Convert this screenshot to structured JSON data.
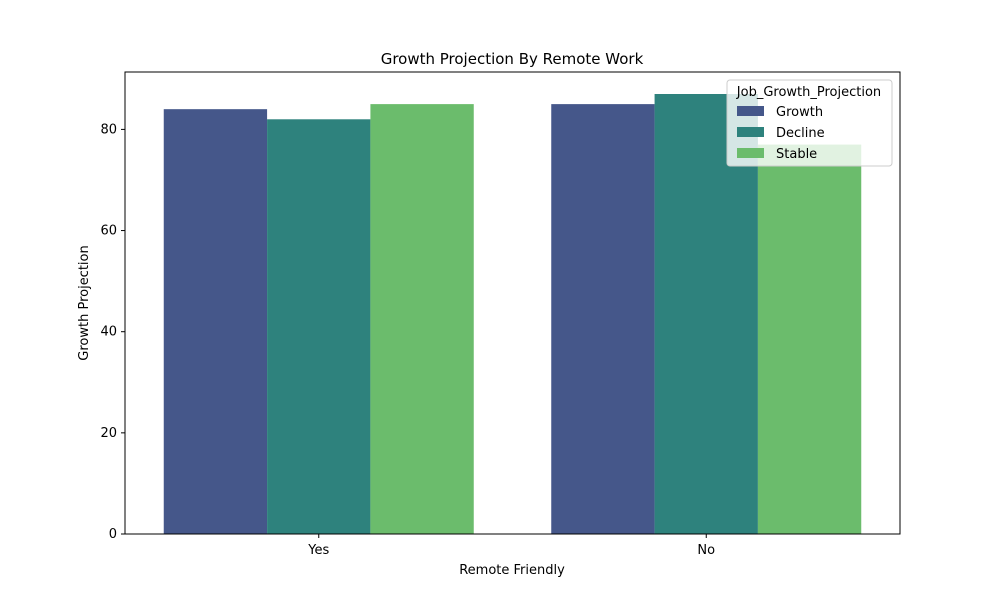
{
  "chart_data": {
    "type": "bar",
    "title": "Growth Projection By Remote Work",
    "xlabel": "Remote Friendly",
    "ylabel": "Growth Projection",
    "categories": [
      "Yes",
      "No"
    ],
    "series": [
      {
        "name": "Growth",
        "color": "#45578a",
        "values": [
          84,
          85
        ]
      },
      {
        "name": "Decline",
        "color": "#2e827d",
        "values": [
          82,
          87
        ]
      },
      {
        "name": "Stable",
        "color": "#6bbc6c",
        "values": [
          85,
          77
        ]
      }
    ],
    "ylim": [
      0,
      91.35
    ],
    "yticks": [
      0,
      20,
      40,
      60,
      80
    ],
    "legend": {
      "title": "Job_Growth_Projection",
      "placement": "top-right"
    },
    "grid": false
  }
}
